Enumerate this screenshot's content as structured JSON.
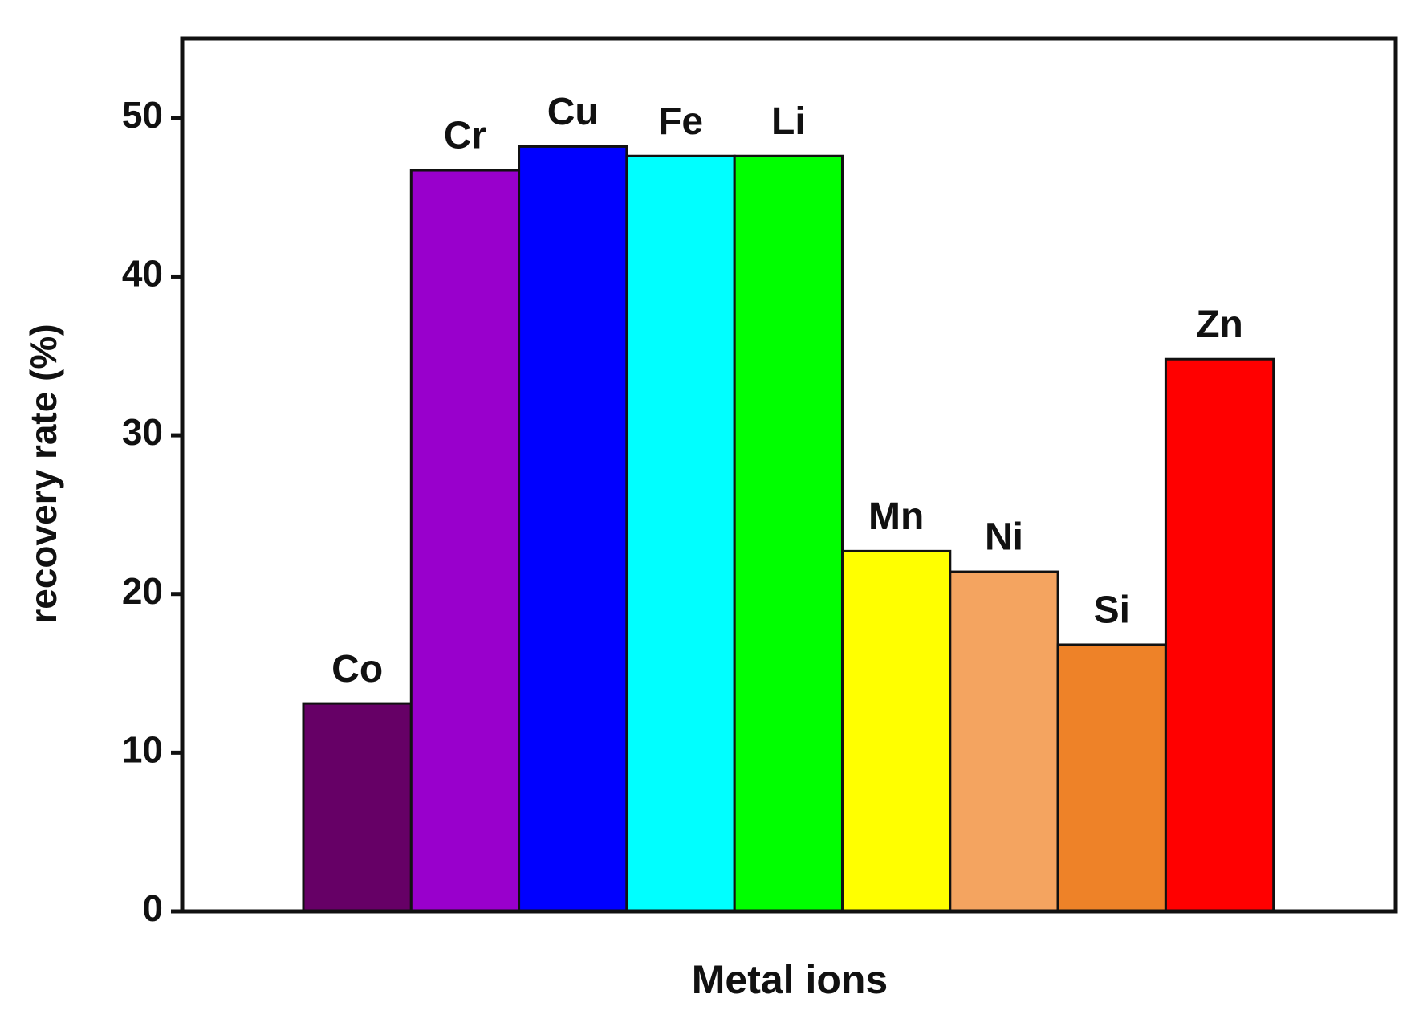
{
  "chart_data": {
    "type": "bar",
    "x_label": "Metal ions",
    "y_label": "recovery rate (%)",
    "categories": [
      "Co",
      "Cr",
      "Cu",
      "Fe",
      "Li",
      "Mn",
      "Ni",
      "Si",
      "Zn"
    ],
    "values": [
      13.1,
      46.7,
      48.2,
      47.6,
      47.6,
      22.7,
      21.4,
      16.8,
      34.8
    ],
    "colors": [
      "#660066",
      "#9900cc",
      "#0000ff",
      "#00ffff",
      "#00ff00",
      "#ffff00",
      "#f4a460",
      "#ee8228",
      "#ff0000"
    ],
    "ylim": [
      0,
      55
    ],
    "yticks": [
      0,
      10,
      20,
      30,
      40,
      50
    ],
    "grid": false
  }
}
